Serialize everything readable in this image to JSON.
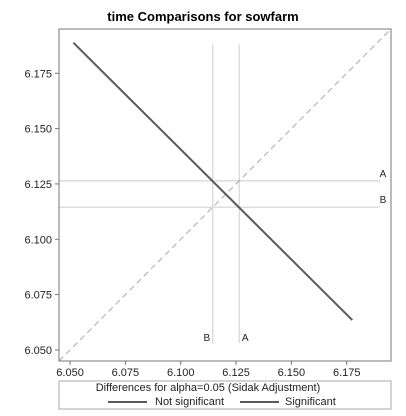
{
  "chart_data": {
    "type": "scatter",
    "title": "time Comparisons for sowfarm",
    "xlabel": "",
    "ylabel": "",
    "xlim": [
      6.045,
      6.195
    ],
    "ylim": [
      6.045,
      6.195
    ],
    "x_ticks": [
      6.05,
      6.075,
      6.1,
      6.125,
      6.15,
      6.175
    ],
    "x_tick_labels": [
      "6.050",
      "6.075",
      "6.100",
      "6.125",
      "6.150",
      "6.175"
    ],
    "y_ticks": [
      6.05,
      6.075,
      6.1,
      6.125,
      6.15,
      6.175
    ],
    "y_tick_labels": [
      "6.050",
      "6.075",
      "6.100",
      "6.125",
      "6.150",
      "6.175"
    ],
    "reference_diagonal": {
      "from": [
        6.045,
        6.045
      ],
      "to": [
        6.195,
        6.195
      ],
      "style": "dashed"
    },
    "group_means": [
      {
        "label": "A",
        "value": 6.1264
      },
      {
        "label": "B",
        "value": 6.1145
      }
    ],
    "comparisons": [
      {
        "name": "Not significant",
        "x1": 6.0515,
        "y1": 6.1888,
        "x2": 6.1775,
        "y2": 6.0635
      }
    ],
    "mean_line_extent": {
      "vertical_y": [
        6.053,
        6.188
      ],
      "horizontal_x": [
        6.045,
        6.19
      ]
    },
    "legend": {
      "title": "Differences for alpha=0.05 (Sidak Adjustment)",
      "placement": "bottom",
      "entries": [
        {
          "label": "Not significant",
          "color": "#5a5a5a"
        },
        {
          "label": "Significant",
          "color": "#5a5a5a"
        }
      ]
    },
    "colors": {
      "comparison_line": "#5a5a5a",
      "reference_lines": "#cccccc",
      "diagonal": "#aaaaaa",
      "frame": "#777777"
    }
  }
}
